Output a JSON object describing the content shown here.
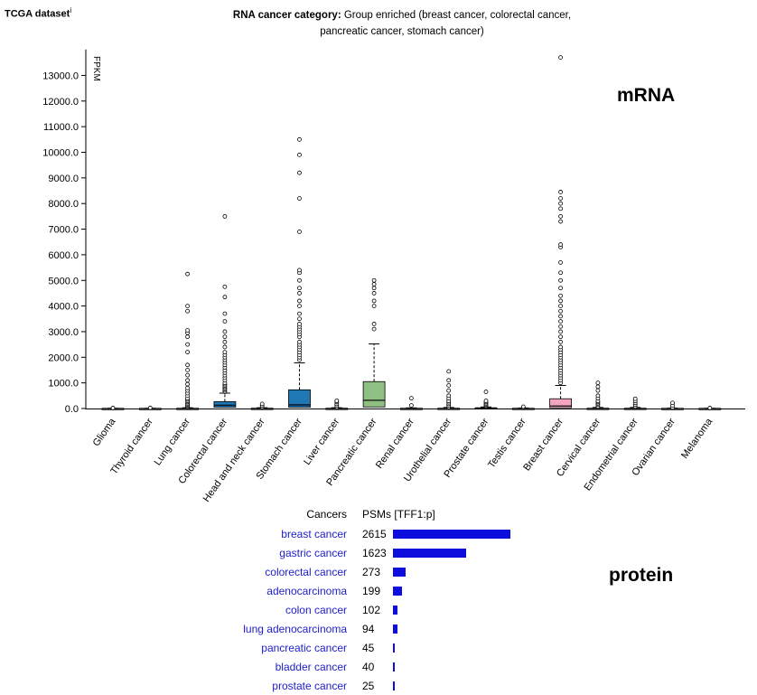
{
  "header": {
    "dataset_title": "TCGA dataset",
    "info_mark": "i",
    "category_label": "RNA cancer category:",
    "category_value_line1": "Group enriched (breast cancer, colorectal cancer,",
    "category_value_line2": "pancreatic cancer, stomach cancer)"
  },
  "labels": {
    "mrna": "mRNA",
    "protein": "protein"
  },
  "chart_data": [
    {
      "type": "box",
      "ylabel": "FPKM",
      "ylim": [
        0,
        13800
      ],
      "yticks": [
        "0.0",
        "1000.0",
        "2000.0",
        "3000.0",
        "4000.0",
        "5000.0",
        "6000.0",
        "7000.0",
        "8000.0",
        "9000.0",
        "10000.0",
        "11000.0",
        "12000.0",
        "13000.0"
      ],
      "grid": false,
      "categories": [
        "Glioma",
        "Thyroid cancer",
        "Lung cancer",
        "Colorectal cancer",
        "Head and neck cancer",
        "Stomach cancer",
        "Liver cancer",
        "Pancreatic cancer",
        "Renal cancer",
        "Urothelial cancer",
        "Prostate cancer",
        "Testis cancer",
        "Breast cancer",
        "Cervical cancer",
        "Endometrial cancer",
        "Ovarian cancer",
        "Melanoma"
      ],
      "boxes": [
        {
          "q1": 0,
          "median": 0,
          "q3": 5,
          "whisker_high": 10,
          "color": "#aaaaaa",
          "outliers": [
            20
          ]
        },
        {
          "q1": 0,
          "median": 0,
          "q3": 5,
          "whisker_high": 10,
          "color": "#aaaaaa",
          "outliers": [
            25
          ]
        },
        {
          "q1": 0,
          "median": 0,
          "q3": 8,
          "whisker_high": 30,
          "color": "#aaaaaa",
          "outliers": [
            50,
            80,
            120,
            160,
            200,
            250,
            300,
            350,
            400,
            500,
            600,
            700,
            800,
            950,
            1100,
            1300,
            1500,
            1700,
            2200,
            2500,
            2800,
            2950,
            3050,
            3800,
            4000,
            5250
          ]
        },
        {
          "q1": 50,
          "median": 130,
          "q3": 270,
          "whisker_high": 600,
          "color": "#1f77b4",
          "outliers": [
            650,
            700,
            750,
            800,
            850,
            900,
            950,
            1000,
            1100,
            1200,
            1300,
            1400,
            1500,
            1600,
            1700,
            1800,
            1900,
            2000,
            2100,
            2200,
            2400,
            2600,
            2800,
            3000,
            3400,
            3700,
            4350,
            4750,
            7500
          ]
        },
        {
          "q1": 0,
          "median": 0,
          "q3": 10,
          "whisker_high": 30,
          "color": "#aaaaaa",
          "outliers": [
            60,
            120,
            180
          ]
        },
        {
          "q1": 50,
          "median": 140,
          "q3": 730,
          "whisker_high": 1780,
          "color": "#1f77b4",
          "outliers": [
            1900,
            2000,
            2100,
            2200,
            2300,
            2400,
            2500,
            2600,
            2800,
            2900,
            3000,
            3100,
            3200,
            3300,
            3500,
            3700,
            4000,
            4200,
            4500,
            4700,
            5000,
            5300,
            5400,
            6900,
            8200,
            9200,
            9900,
            10500
          ]
        },
        {
          "q1": 0,
          "median": 0,
          "q3": 10,
          "whisker_high": 30,
          "color": "#aaaaaa",
          "outliers": [
            60,
            120,
            180,
            250,
            300
          ]
        },
        {
          "q1": 60,
          "median": 320,
          "q3": 1050,
          "whisker_high": 2520,
          "color": "#8fbf82",
          "outliers": [
            3100,
            3300,
            4000,
            4200,
            4500,
            4700,
            4850,
            5000
          ]
        },
        {
          "q1": 0,
          "median": 0,
          "q3": 8,
          "whisker_high": 25,
          "color": "#aaaaaa",
          "outliers": [
            120,
            400
          ]
        },
        {
          "q1": 0,
          "median": 0,
          "q3": 10,
          "whisker_high": 40,
          "color": "#aaaaaa",
          "outliers": [
            60,
            120,
            180,
            240,
            300,
            400,
            500,
            700,
            900,
            1100,
            1450
          ]
        },
        {
          "q1": 0,
          "median": 0,
          "q3": 30,
          "whisker_high": 60,
          "color": "#aaaaaa",
          "outliers": [
            80,
            120,
            160,
            200,
            250,
            300,
            650
          ]
        },
        {
          "q1": 0,
          "median": 0,
          "q3": 8,
          "whisker_high": 20,
          "color": "#aaaaaa",
          "outliers": [
            40,
            70
          ]
        },
        {
          "q1": 30,
          "median": 100,
          "q3": 380,
          "whisker_high": 900,
          "color": "#f4a6c0",
          "outliers": [
            1000,
            1100,
            1200,
            1300,
            1400,
            1500,
            1600,
            1700,
            1800,
            1900,
            2000,
            2100,
            2200,
            2300,
            2400,
            2600,
            2800,
            3000,
            3200,
            3400,
            3600,
            3800,
            4000,
            4200,
            4400,
            4700,
            5000,
            5300,
            5700,
            6300,
            6400,
            7300,
            7500,
            7800,
            8000,
            8200,
            8450,
            13700
          ]
        },
        {
          "q1": 0,
          "median": 0,
          "q3": 10,
          "whisker_high": 40,
          "color": "#aaaaaa",
          "outliers": [
            80,
            150,
            200,
            250,
            300,
            400,
            500,
            700,
            850,
            1000
          ]
        },
        {
          "q1": 0,
          "median": 0,
          "q3": 10,
          "whisker_high": 40,
          "color": "#aaaaaa",
          "outliers": [
            80,
            150,
            220,
            300,
            380
          ]
        },
        {
          "q1": 0,
          "median": 0,
          "q3": 5,
          "whisker_high": 15,
          "color": "#aaaaaa",
          "outliers": [
            40,
            120,
            220
          ]
        },
        {
          "q1": 0,
          "median": 0,
          "q3": 5,
          "whisker_high": 10,
          "color": "#aaaaaa",
          "outliers": [
            20
          ]
        }
      ]
    },
    {
      "type": "bar",
      "header_cancers": "Cancers",
      "header_psms": "PSMs",
      "header_gene": "[TFF1:p]",
      "categories": [
        "breast cancer",
        "gastric cancer",
        "colorectal cancer",
        "adenocarcinoma",
        "colon cancer",
        "lung adenocarcinoma",
        "pancreatic cancer",
        "bladder cancer",
        "prostate cancer"
      ],
      "values": [
        2615,
        1623,
        273,
        199,
        102,
        94,
        45,
        40,
        25
      ],
      "color": "#0d0ddd"
    }
  ]
}
